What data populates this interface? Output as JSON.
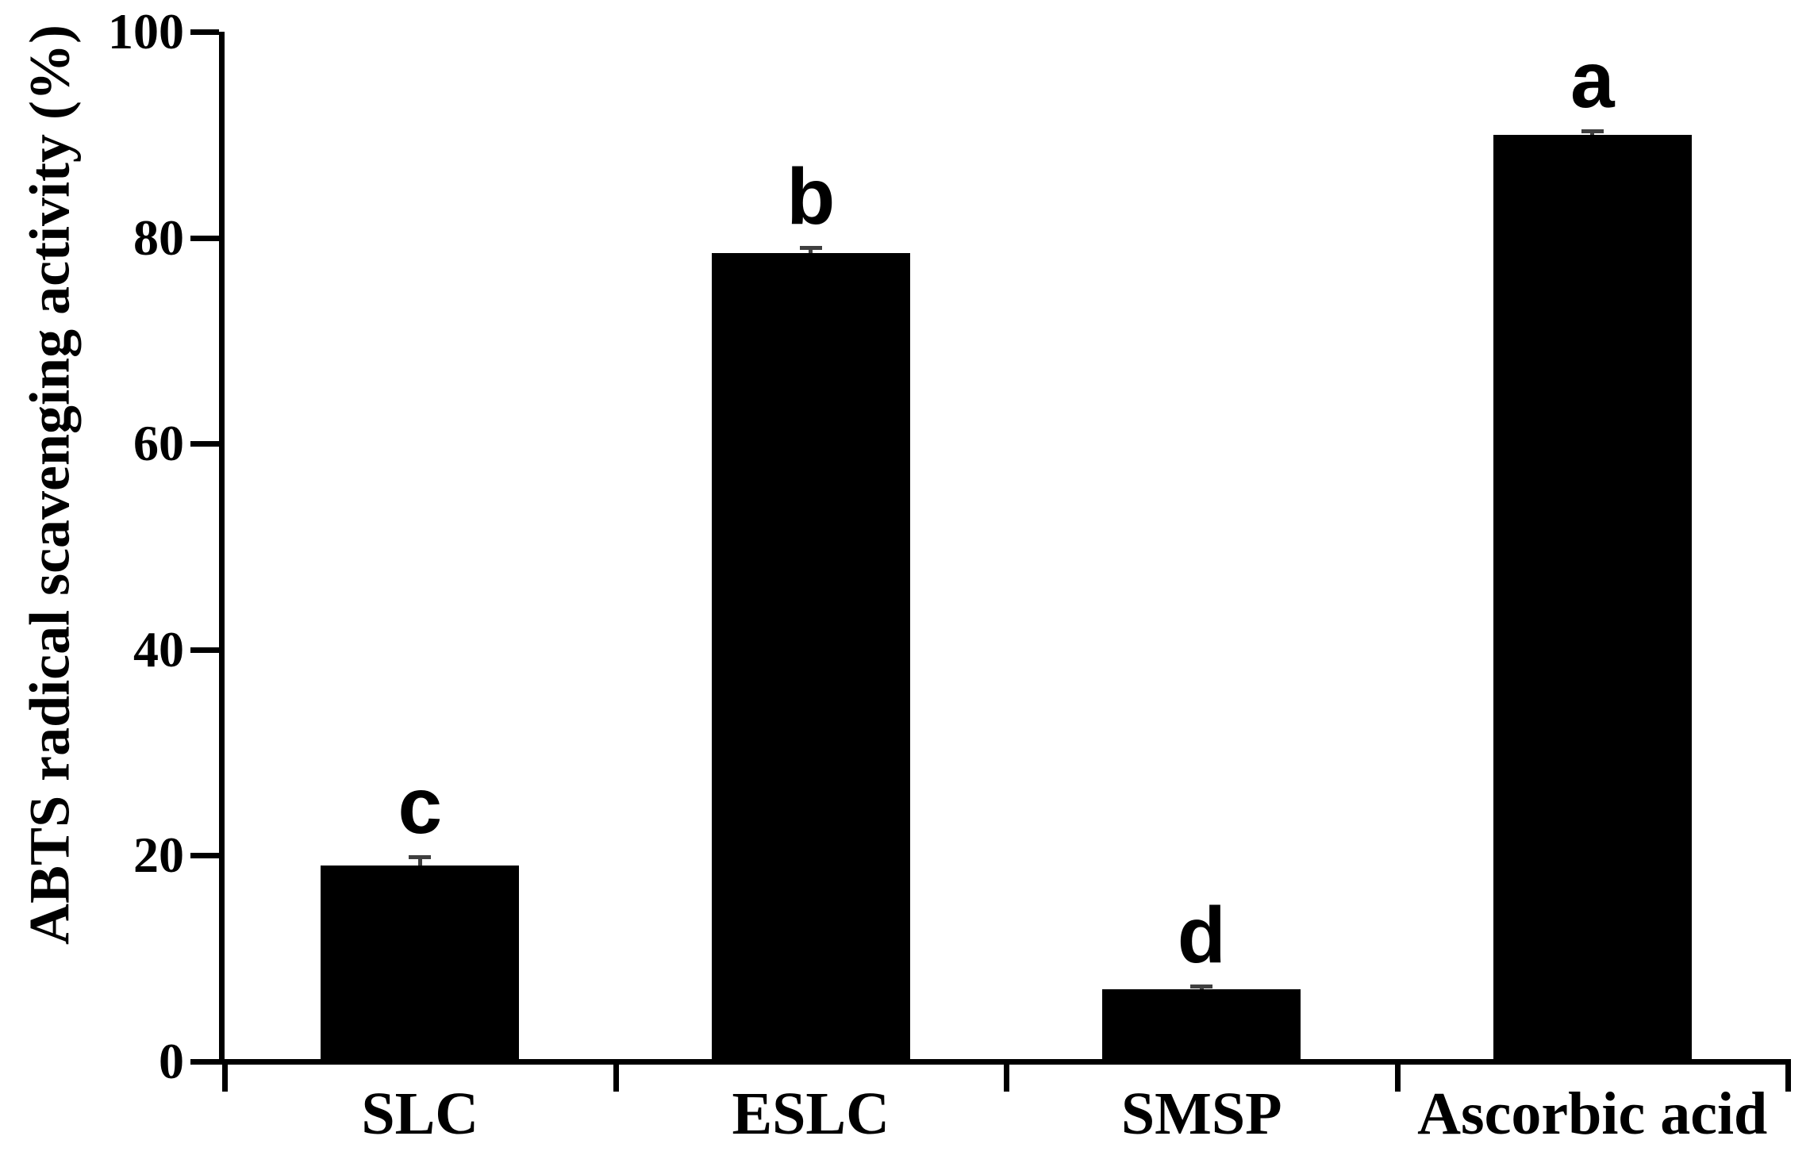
{
  "figure": {
    "background": "#ffffff"
  },
  "chart_data": {
    "type": "bar",
    "title": "",
    "ylabel": "ABTS radical scavenging activity (%)",
    "xlabel": "",
    "categories": [
      "SLC",
      "ESLC",
      "SMSP",
      "Ascorbic acid"
    ],
    "values": [
      19,
      78.5,
      7,
      90
    ],
    "error_bars": [
      1.0,
      0.7,
      0.5,
      0.5
    ],
    "sig_letters": [
      "c",
      "b",
      "d",
      "a"
    ],
    "ylim": [
      0,
      100
    ],
    "yticks": [
      0,
      20,
      40,
      60,
      80,
      100
    ],
    "grid": false,
    "legend": "none",
    "bar_color": "#000000",
    "error_bar_color": "#3f3f3f",
    "axis_color": "#000000",
    "text_color": "#000000"
  }
}
